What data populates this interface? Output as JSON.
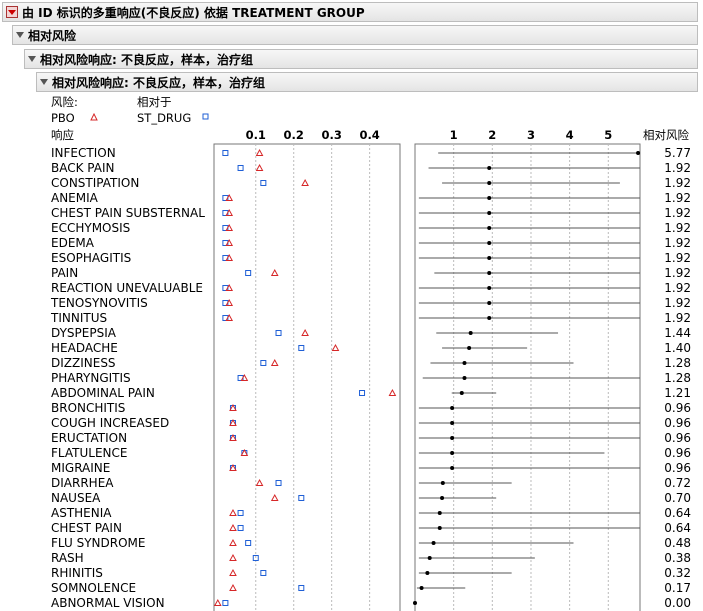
{
  "headers": {
    "main_title": "由 ID 标识的多重响应(不良反应) 依据 TREATMENT GROUP",
    "section1": "相对风险",
    "section2": "相对风险响应: 不良反应，样本，治疗组",
    "section3": "相对风险响应: 不良反应，样本，治疗组"
  },
  "legend": {
    "risk_label": "风险:",
    "relative_label": "相对于",
    "pbo": "PBO",
    "st_drug": "ST_DRUG",
    "pbo_color": "#d62728",
    "st_drug_color": "#1f5fd6"
  },
  "columns": {
    "response_header": "响应",
    "relative_risk_header": "相对风险"
  },
  "chart_data": [
    {
      "type": "scatter",
      "title": "",
      "xlabel": "",
      "x_ticks": [
        "0.1",
        "0.2",
        "0.3",
        "0.4"
      ],
      "xlim": [
        -0.01,
        0.48
      ],
      "grid": true,
      "categories": [
        "INFECTION",
        "BACK PAIN",
        "CONSTIPATION",
        "ANEMIA",
        "CHEST PAIN SUBSTERNAL",
        "ECCHYMOSIS",
        "EDEMA",
        "ESOPHAGITIS",
        "PAIN",
        "REACTION UNEVALUABLE",
        "TENOSYNOVITIS",
        "TINNITUS",
        "DYSPEPSIA",
        "HEADACHE",
        "DIZZINESS",
        "PHARYNGITIS",
        "ABDOMINAL PAIN",
        "BRONCHITIS",
        "COUGH INCREASED",
        "ERUCTATION",
        "FLATULENCE",
        "MIGRAINE",
        "DIARRHEA",
        "NAUSEA",
        "ASTHENIA",
        "CHEST PAIN",
        "FLU SYNDROME",
        "RASH",
        "RHINITIS",
        "SOMNOLENCE",
        "ABNORMAL VISION"
      ],
      "series": [
        {
          "name": "PBO",
          "marker": "triangle",
          "values": [
            0.11,
            0.11,
            0.23,
            0.03,
            0.03,
            0.03,
            0.03,
            0.03,
            0.15,
            0.03,
            0.03,
            0.03,
            0.23,
            0.31,
            0.15,
            0.07,
            0.46,
            0.04,
            0.04,
            0.04,
            0.07,
            0.04,
            0.11,
            0.15,
            0.04,
            0.04,
            0.04,
            0.04,
            0.04,
            0.04,
            0.0
          ]
        },
        {
          "name": "ST_DRUG",
          "marker": "square",
          "values": [
            0.02,
            0.06,
            0.12,
            0.02,
            0.02,
            0.02,
            0.02,
            0.02,
            0.08,
            0.02,
            0.02,
            0.02,
            0.16,
            0.22,
            0.12,
            0.06,
            0.38,
            0.04,
            0.04,
            0.04,
            0.07,
            0.04,
            0.16,
            0.22,
            0.06,
            0.06,
            0.08,
            0.1,
            0.12,
            0.22,
            0.02
          ]
        }
      ]
    },
    {
      "type": "scatter",
      "title": "",
      "xlabel": "",
      "x_ticks": [
        "1",
        "2",
        "3",
        "4",
        "5"
      ],
      "xlim": [
        0,
        5.82
      ],
      "grid": true,
      "categories": [
        "INFECTION",
        "BACK PAIN",
        "CONSTIPATION",
        "ANEMIA",
        "CHEST PAIN SUBSTERNAL",
        "ECCHYMOSIS",
        "EDEMA",
        "ESOPHAGITIS",
        "PAIN",
        "REACTION UNEVALUABLE",
        "TENOSYNOVITIS",
        "TINNITUS",
        "DYSPEPSIA",
        "HEADACHE",
        "DIZZINESS",
        "PHARYNGITIS",
        "ABDOMINAL PAIN",
        "BRONCHITIS",
        "COUGH INCREASED",
        "ERUCTATION",
        "FLATULENCE",
        "MIGRAINE",
        "DIARRHEA",
        "NAUSEA",
        "ASTHENIA",
        "CHEST PAIN",
        "FLU SYNDROME",
        "RASH",
        "RHINITIS",
        "SOMNOLENCE",
        "ABNORMAL VISION"
      ],
      "relative_risk": [
        5.77,
        1.92,
        1.92,
        1.92,
        1.92,
        1.92,
        1.92,
        1.92,
        1.92,
        1.92,
        1.92,
        1.92,
        1.44,
        1.4,
        1.28,
        1.28,
        1.21,
        0.96,
        0.96,
        0.96,
        0.96,
        0.96,
        0.72,
        0.7,
        0.64,
        0.64,
        0.48,
        0.38,
        0.32,
        0.17,
        0.0
      ],
      "relative_risk_labels": [
        "5.77",
        "1.92",
        "1.92",
        "1.92",
        "1.92",
        "1.92",
        "1.92",
        "1.92",
        "1.92",
        "1.92",
        "1.92",
        "1.92",
        "1.44",
        "1.40",
        "1.28",
        "1.28",
        "1.21",
        "0.96",
        "0.96",
        "0.96",
        "0.96",
        "0.96",
        "0.72",
        "0.70",
        "0.64",
        "0.64",
        "0.48",
        "0.38",
        "0.32",
        "0.17",
        "0.00"
      ],
      "ci_lower": [
        0.6,
        0.35,
        0.7,
        0.1,
        0.1,
        0.1,
        0.1,
        0.1,
        0.5,
        0.1,
        0.1,
        0.1,
        0.55,
        0.7,
        0.4,
        0.2,
        0.95,
        0.1,
        0.1,
        0.1,
        0.1,
        0.1,
        0.1,
        0.1,
        0.1,
        0.1,
        0.1,
        0.1,
        0.1,
        0.05,
        0.0
      ],
      "ci_upper": [
        5.82,
        5.82,
        5.3,
        5.82,
        5.82,
        5.82,
        5.82,
        5.82,
        5.82,
        5.82,
        5.82,
        5.82,
        3.7,
        2.9,
        4.1,
        5.82,
        2.1,
        5.82,
        5.82,
        5.82,
        4.9,
        5.82,
        2.5,
        2.1,
        5.82,
        5.82,
        4.1,
        3.1,
        2.5,
        1.3,
        0.0
      ]
    }
  ]
}
